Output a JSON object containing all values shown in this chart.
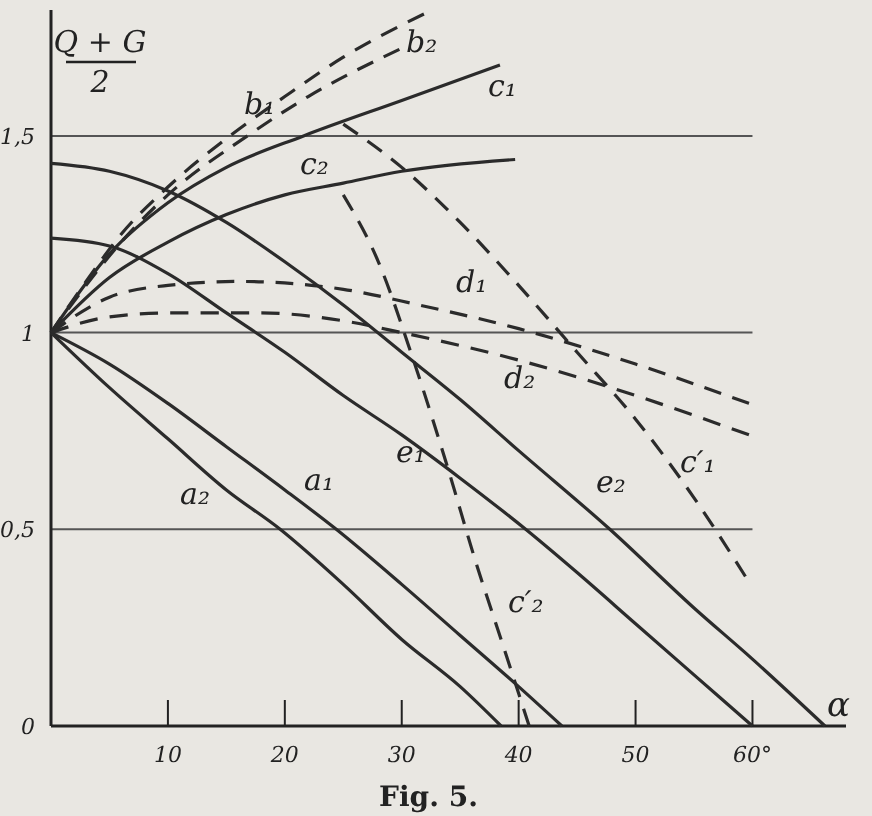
{
  "chart_data": {
    "type": "line",
    "xlabel": "α",
    "ylabel": "Q + G\n2",
    "annotations": [
      "Fig. 5."
    ],
    "xlim": [
      0,
      68
    ],
    "ylim": [
      0,
      1.82
    ],
    "xticks": [
      10,
      20,
      30,
      40,
      50,
      {
        "value": 60,
        "label": "60°"
      }
    ],
    "yticks": [
      0,
      {
        "value": 0.5,
        "label": "0,5"
      },
      1,
      {
        "value": 1.5,
        "label": "1,5"
      }
    ],
    "grid": "y",
    "series": [
      {
        "name": "a₁",
        "color": "#2b2b2b",
        "line_style": "solid",
        "x": [
          0,
          5,
          10,
          15,
          20,
          24.4,
          30,
          35,
          40,
          43.7
        ],
        "values": [
          1,
          0.92,
          0.82,
          0.71,
          0.6,
          0.5,
          0.36,
          0.23,
          0.1,
          0
        ]
      },
      {
        "name": "a₂",
        "color": "#2b2b2b",
        "line_style": "solid",
        "x": [
          0,
          5,
          10,
          15,
          19.6,
          25,
          30,
          35,
          38.5
        ],
        "values": [
          1,
          0.86,
          0.73,
          0.6,
          0.5,
          0.36,
          0.22,
          0.1,
          0
        ]
      },
      {
        "name": "b₁",
        "color": "#2b2b2b",
        "line_style": "dashed",
        "x": [
          0,
          3,
          6,
          10,
          15.3,
          20,
          25,
          31.9
        ],
        "values": [
          1,
          1.13,
          1.25,
          1.37,
          1.5,
          1.6,
          1.7,
          1.81
        ]
      },
      {
        "name": "b₂",
        "color": "#2b2b2b",
        "line_style": "dashed",
        "x": [
          0,
          3,
          6,
          10,
          16.8,
          22,
          29.8
        ],
        "values": [
          1,
          1.12,
          1.23,
          1.35,
          1.5,
          1.6,
          1.72
        ]
      },
      {
        "name": "c₁",
        "color": "#2b2b2b",
        "line_style": "solid",
        "x": [
          0,
          5,
          10,
          15,
          21.6,
          30,
          38.4
        ],
        "values": [
          1,
          1.2,
          1.33,
          1.42,
          1.5,
          1.59,
          1.68
        ]
      },
      {
        "name": "c₂",
        "color": "#2b2b2b",
        "line_style": "solid",
        "x": [
          0,
          5,
          10,
          15,
          20,
          25,
          30,
          39.7
        ],
        "values": [
          1,
          1.14,
          1.23,
          1.3,
          1.35,
          1.38,
          1.41,
          1.44
        ]
      },
      {
        "name": "d₁",
        "color": "#2b2b2b",
        "line_style": "dashed",
        "x": [
          0,
          5,
          10,
          16,
          25,
          31.5,
          40,
          50,
          59.7
        ],
        "values": [
          1,
          1.09,
          1.12,
          1.13,
          1.11,
          1.07,
          1.01,
          0.92,
          0.82
        ]
      },
      {
        "name": "d₂",
        "color": "#2b2b2b",
        "line_style": "dashed",
        "x": [
          0,
          5,
          10,
          18,
          25,
          30,
          40,
          50,
          59.7
        ],
        "values": [
          1,
          1.04,
          1.05,
          1.05,
          1.03,
          1,
          0.93,
          0.84,
          0.74
        ]
      },
      {
        "name": "e₁",
        "color": "#2b2b2b",
        "line_style": "solid",
        "x": [
          0,
          5,
          10,
          15,
          20,
          25,
          30,
          35,
          40.6,
          45,
          50,
          55,
          60
        ],
        "values": [
          1.24,
          1.22,
          1.15,
          1.05,
          0.95,
          0.84,
          0.74,
          0.63,
          0.5,
          0.39,
          0.26,
          0.13,
          0
        ]
      },
      {
        "name": "e₂",
        "color": "#2b2b2b",
        "line_style": "solid",
        "x": [
          0,
          5,
          10,
          15,
          20,
          25,
          30,
          35,
          40,
          47.8,
          55,
          60,
          66.2
        ],
        "values": [
          1.43,
          1.41,
          1.36,
          1.28,
          1.18,
          1.07,
          0.95,
          0.83,
          0.7,
          0.5,
          0.3,
          0.17,
          0
        ]
      },
      {
        "name": "c′₁",
        "color": "#2b2b2b",
        "line_style": "dashed",
        "x": [
          25,
          30,
          35,
          40,
          45,
          50,
          55,
          59.4
        ],
        "values": [
          1.53,
          1.42,
          1.28,
          1.12,
          0.95,
          0.78,
          0.58,
          0.38
        ]
      },
      {
        "name": "c′₂",
        "color": "#2b2b2b",
        "line_style": "dashed",
        "x": [
          25,
          28,
          31,
          34,
          36.3,
          38.5,
          40.9
        ],
        "values": [
          1.35,
          1.18,
          0.93,
          0.65,
          0.42,
          0.22,
          0
        ]
      }
    ]
  }
}
